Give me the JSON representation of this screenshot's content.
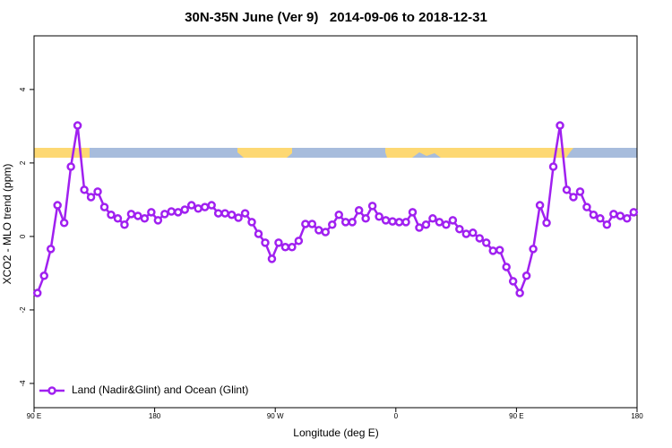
{
  "chart_data": {
    "type": "line",
    "title": "30N-35N June (Ver 9)   2014-09-06 to 2018-12-31",
    "x_label": "Longitude (deg E)",
    "y_label": "XCO2 - MLO trend (ppm)",
    "x": [
      92.5,
      97.5,
      102.5,
      107.5,
      112.5,
      117.5,
      122.5,
      127.5,
      132.5,
      137.5,
      142.5,
      147.5,
      152.5,
      157.5,
      162.5,
      167.5,
      172.5,
      177.5,
      182.5,
      187.5,
      192.5,
      197.5,
      202.5,
      207.5,
      212.5,
      217.5,
      222.5,
      227.5,
      232.5,
      237.5,
      242.5,
      247.5,
      252.5,
      257.5,
      262.5,
      267.5,
      272.5,
      277.5,
      282.5,
      287.5,
      292.5,
      297.5,
      302.5,
      307.5,
      312.5,
      317.5,
      322.5,
      327.5,
      332.5,
      337.5,
      342.5,
      347.5,
      352.5,
      357.5,
      362.5,
      367.5,
      372.5,
      377.5,
      382.5,
      387.5,
      392.5,
      397.5,
      402.5,
      407.5,
      412.5,
      417.5,
      422.5,
      427.5,
      432.5,
      437.5,
      442.5,
      447.5,
      452.5,
      457.5,
      462.5,
      467.5,
      472.5,
      477.5,
      482.5,
      487.5,
      492.5,
      497.5,
      502.5,
      507.5,
      512.5,
      517.5,
      522.5,
      527.5,
      532.5,
      537.5
    ],
    "series": [
      {
        "name": "Land (Nadir&Glint) and Ocean (Glint)",
        "color": "#a020f0",
        "values": [
          -1.54,
          -1.07,
          -0.34,
          0.85,
          0.37,
          1.9,
          3.02,
          1.27,
          1.07,
          1.22,
          0.8,
          0.59,
          0.49,
          0.32,
          0.61,
          0.56,
          0.49,
          0.66,
          0.44,
          0.61,
          0.68,
          0.66,
          0.73,
          0.85,
          0.76,
          0.8,
          0.85,
          0.63,
          0.63,
          0.59,
          0.51,
          0.63,
          0.39,
          0.07,
          -0.17,
          -0.61,
          -0.17,
          -0.29,
          -0.29,
          -0.12,
          0.34,
          0.34,
          0.17,
          0.12,
          0.32,
          0.59,
          0.39,
          0.39,
          0.71,
          0.49,
          0.83,
          0.54,
          0.44,
          0.41,
          0.39,
          0.39,
          0.66,
          0.24,
          0.32,
          0.49,
          0.39,
          0.32,
          0.44,
          0.2,
          0.07,
          0.1,
          -0.05,
          -0.17,
          -0.39,
          -0.37,
          -0.83,
          -1.22,
          -1.54,
          -1.07,
          -0.34,
          0.85,
          0.37,
          1.9,
          3.02,
          1.27,
          1.07,
          1.22,
          0.8,
          0.59,
          0.49,
          0.32,
          0.61,
          0.56,
          0.49,
          0.66
        ]
      }
    ],
    "xlim": [
      90,
      540
    ],
    "xticks": [
      {
        "value": 90,
        "label": "90 E"
      },
      180,
      {
        "value": 270,
        "label": "90 W"
      },
      {
        "value": 360,
        "label": "0"
      },
      {
        "value": 450,
        "label": "90 E"
      },
      {
        "value": 540,
        "label": "180"
      }
    ],
    "ylim": [
      -4.66,
      5.46
    ],
    "yticks": [
      -4,
      -2,
      0,
      2,
      4
    ],
    "legend": "bottom-left"
  }
}
